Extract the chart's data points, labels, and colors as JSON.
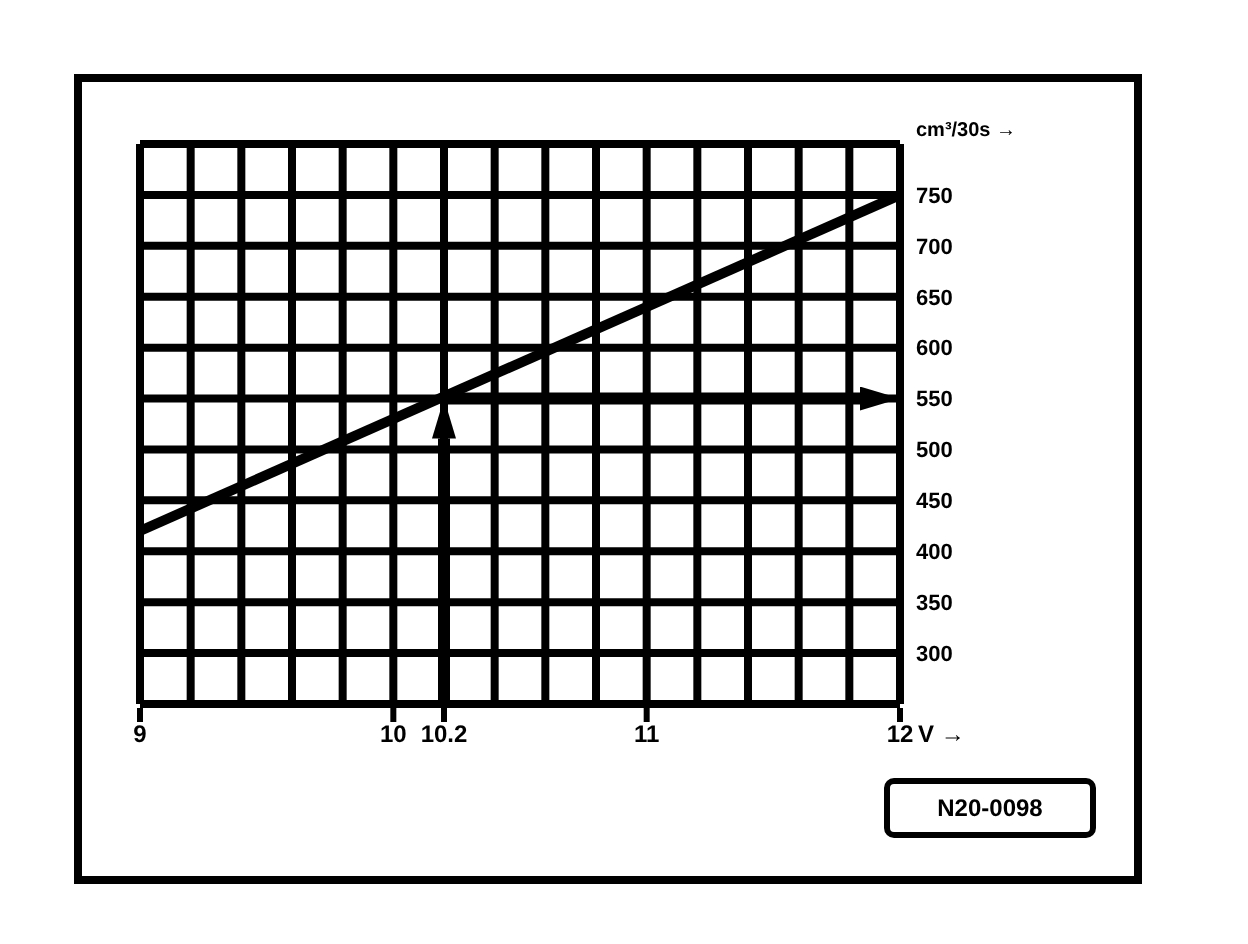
{
  "chart_data": {
    "type": "line",
    "xlabel": "V →",
    "ylabel": "cm³/30s →",
    "x": [
      9,
      12
    ],
    "series": [
      {
        "color": "#000000",
        "values": [
          420,
          750
        ]
      }
    ],
    "xlim": [
      9,
      12
    ],
    "ylim": [
      250,
      800
    ],
    "xticks": [
      9,
      {
        "value": 9.2,
        "label": null
      },
      {
        "value": 9.4,
        "label": null
      },
      {
        "value": 9.6,
        "label": null
      },
      {
        "value": 9.8,
        "label": null
      },
      10,
      {
        "value": 10.2,
        "label": "10.2"
      },
      {
        "value": 10.4,
        "label": null
      },
      {
        "value": 10.6,
        "label": null
      },
      {
        "value": 10.8,
        "label": null
      },
      11,
      {
        "value": 11.2,
        "label": null
      },
      {
        "value": 11.4,
        "label": null
      },
      {
        "value": 11.6,
        "label": null
      },
      {
        "value": 11.8,
        "label": null
      },
      12
    ],
    "yticks": [
      300,
      350,
      400,
      450,
      500,
      550,
      600,
      650,
      700,
      750
    ],
    "grid": true,
    "ref_lines": [
      {
        "axis": "x",
        "value": 10.2,
        "color": "#000000"
      },
      {
        "axis": "y",
        "value": 550,
        "color": "#000000"
      }
    ],
    "annotations": [
      "N20-0098"
    ]
  }
}
